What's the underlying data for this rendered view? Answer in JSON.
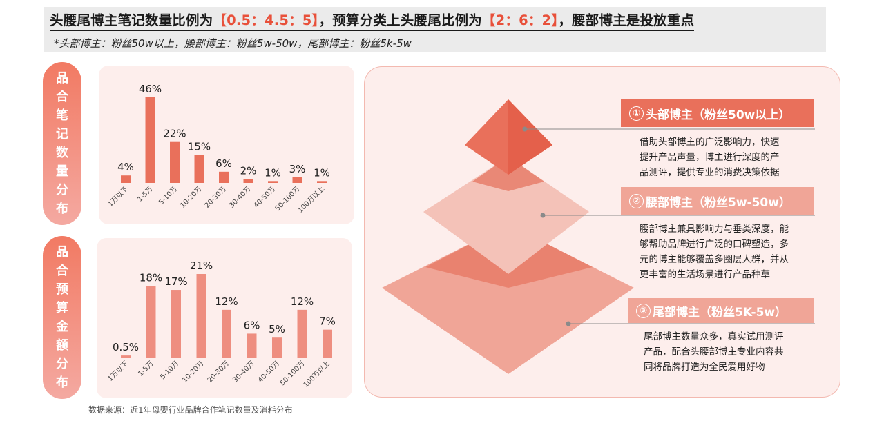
{
  "header": {
    "headline_a": "头腰尾博主笔记数量比例为",
    "headline_b": "【0.5：4.5：5】",
    "headline_c": "，预算分类上头腰尾比例为",
    "headline_d": "【2：6：2】",
    "headline_e": "，腰部博主是投放重点",
    "note": "*头部博主：粉丝50w以上，腰部博主：粉丝5w-50w，尾部博主：粉丝5k-5w"
  },
  "side_labels": {
    "notes": [
      "品",
      "合",
      "笔",
      "记",
      "数",
      "量",
      "分",
      "布"
    ],
    "budget": [
      "品",
      "合",
      "预",
      "算",
      "金",
      "额",
      "分",
      "布"
    ]
  },
  "chart_data": [
    {
      "type": "bar",
      "categories": [
        "1万以下",
        "1-5万",
        "5-10万",
        "10-20万",
        "20-30万",
        "30-40万",
        "40-50万",
        "50-100万",
        "100万以上"
      ],
      "values": [
        4,
        46,
        22,
        15,
        6,
        2,
        1,
        3,
        1
      ],
      "labels": [
        "4%",
        "46%",
        "22%",
        "15%",
        "6%",
        "2%",
        "1%",
        "3%",
        "1%"
      ],
      "color": "#e9705b",
      "ylim": [
        0,
        46
      ]
    },
    {
      "type": "bar",
      "categories": [
        "1万以下",
        "1-5万",
        "5-10万",
        "10-20万",
        "20-30万",
        "30-40万",
        "40-50万",
        "50-100万",
        "100万以上"
      ],
      "values": [
        0.5,
        18,
        17,
        21,
        12,
        6,
        5,
        12,
        7
      ],
      "labels": [
        "0.5%",
        "18%",
        "17%",
        "21%",
        "12%",
        "6%",
        "5%",
        "12%",
        "7%"
      ],
      "color": "#ee8e80",
      "ylim": [
        0,
        21
      ]
    }
  ],
  "pyramid": {
    "colors": {
      "top": "#e9705b",
      "mid": "#f4c2b8",
      "bottom": "#f0a597",
      "head_dark": "#e9705b",
      "head_light": "#f0a597"
    },
    "tiers": [
      {
        "num": "①",
        "title": "头部博主（粉丝50w以上）",
        "desc": [
          "借助头部博主的广泛影响力，快速",
          "提升产品声量，博主进行深度的产",
          "品测评，提供专业的消费决策依据"
        ]
      },
      {
        "num": "②",
        "title": "腰部博主（粉丝5w-50w）",
        "desc": [
          "腰部博主兼具影响力与垂类深度，能",
          "够帮助品牌进行广泛的口碑塑造，多",
          "元的博主能够覆盖多圈层人群，并从",
          "更丰富的生活场景进行产品种草"
        ]
      },
      {
        "num": "③",
        "title": "尾部博主（粉丝5K-5w）",
        "desc": [
          "尾部博主数量众多，真实试用测评",
          "产品，配合头腰部博主专业内容共",
          "同将品牌打造为全民爱用好物"
        ]
      }
    ]
  },
  "source": "数据来源：近1年母婴行业品牌合作笔记数量及消耗分布"
}
